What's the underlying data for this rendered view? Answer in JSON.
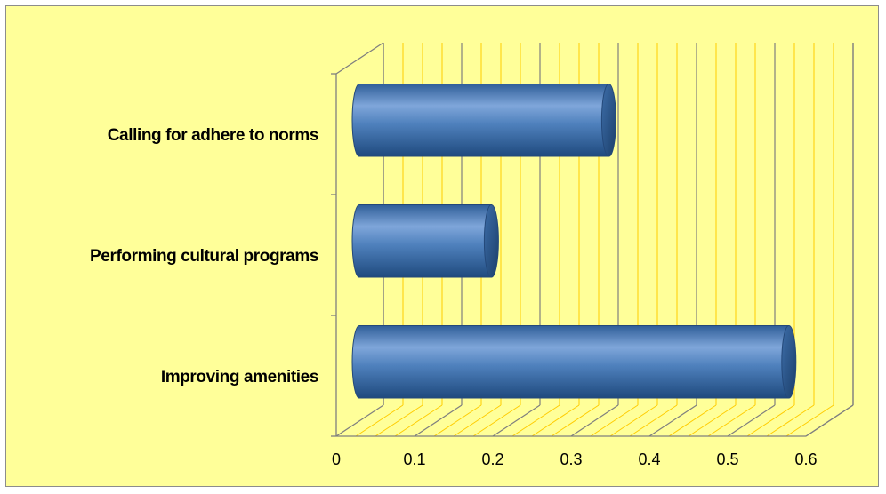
{
  "chart_data": {
    "type": "bar",
    "orientation": "horizontal",
    "style": "3d-cylinder",
    "categories": [
      "Improving amenities",
      "Performing cultural programs",
      "Calling for adhere to norms"
    ],
    "values": [
      0.56,
      0.18,
      0.33
    ],
    "title": "",
    "xlabel": "",
    "ylabel": "",
    "xlim": [
      0,
      0.6
    ],
    "ticks": [
      "0",
      "0.1",
      "0.2",
      "0.3",
      "0.4",
      "0.5",
      "0.6"
    ],
    "grid": true,
    "legend": "none",
    "colors": {
      "background": "#FFFF99",
      "gridline": "#FFCC00",
      "bar": "#4F81BD",
      "bar_dark": "#2C4D75",
      "wall_edge": "#7F7F7F"
    }
  }
}
